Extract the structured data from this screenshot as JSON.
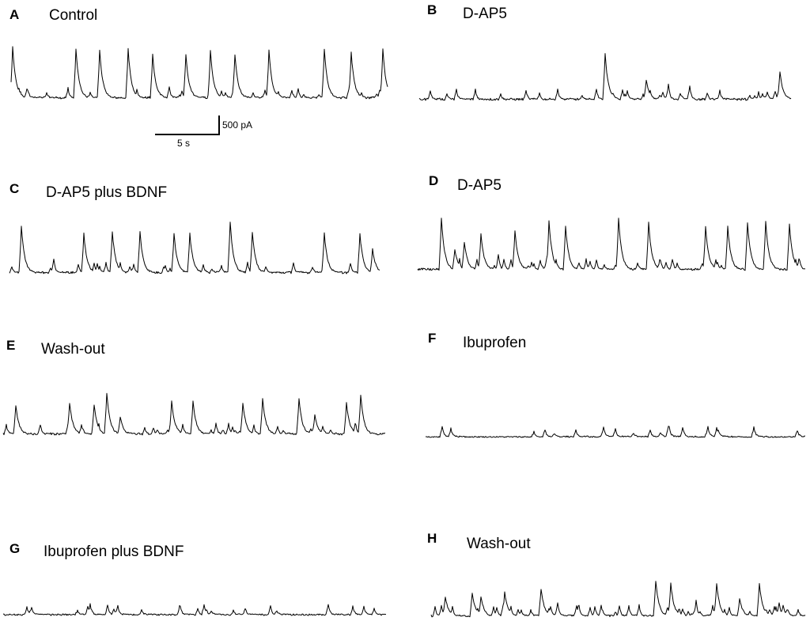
{
  "panels": [
    {
      "letter": "A",
      "label": "Control"
    },
    {
      "letter": "B",
      "label": "D-AP5"
    },
    {
      "letter": "C",
      "label": "D-AP5 plus BDNF"
    },
    {
      "letter": "D",
      "label": "D-AP5"
    },
    {
      "letter": "E",
      "label": "Wash-out"
    },
    {
      "letter": "F",
      "label": "Ibuprofen"
    },
    {
      "letter": "G",
      "label": "Ibuprofen plus BDNF"
    },
    {
      "letter": "H",
      "label": "Wash-out"
    }
  ],
  "scale_bar": {
    "amplitude": "500 pA",
    "time": "5 s"
  }
}
